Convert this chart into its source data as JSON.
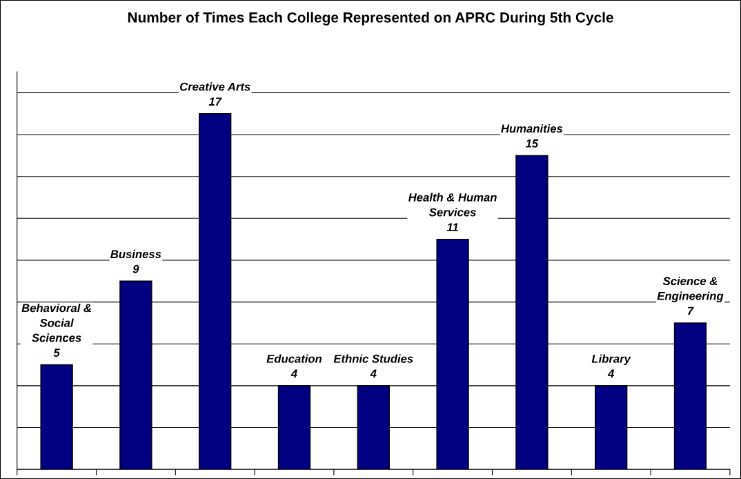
{
  "chart_data": {
    "type": "bar",
    "title": "Number of Times Each College Represented on APRC During 5th Cycle",
    "categories": [
      "Behavioral & Social Sciences",
      "Business",
      "Creative Arts",
      "Education",
      "Ethnic Studies",
      "Health & Human Services",
      "Humanities",
      "Library",
      "Science & Engineering"
    ],
    "values": [
      5,
      9,
      17,
      4,
      4,
      11,
      15,
      4,
      7
    ],
    "color": "#000080",
    "ylim": [
      0,
      19
    ],
    "yticks": [
      {
        "value": 0,
        "label": null
      },
      {
        "value": 2,
        "label": null
      },
      {
        "value": 4,
        "label": null
      },
      {
        "value": 6,
        "label": null
      },
      {
        "value": 8,
        "label": null
      },
      {
        "value": 10,
        "label": null
      },
      {
        "value": 12,
        "label": null
      },
      {
        "value": 14,
        "label": null
      },
      {
        "value": 16,
        "label": null
      },
      {
        "value": 18,
        "label": null
      }
    ],
    "grid": "y",
    "data_labels": true
  }
}
